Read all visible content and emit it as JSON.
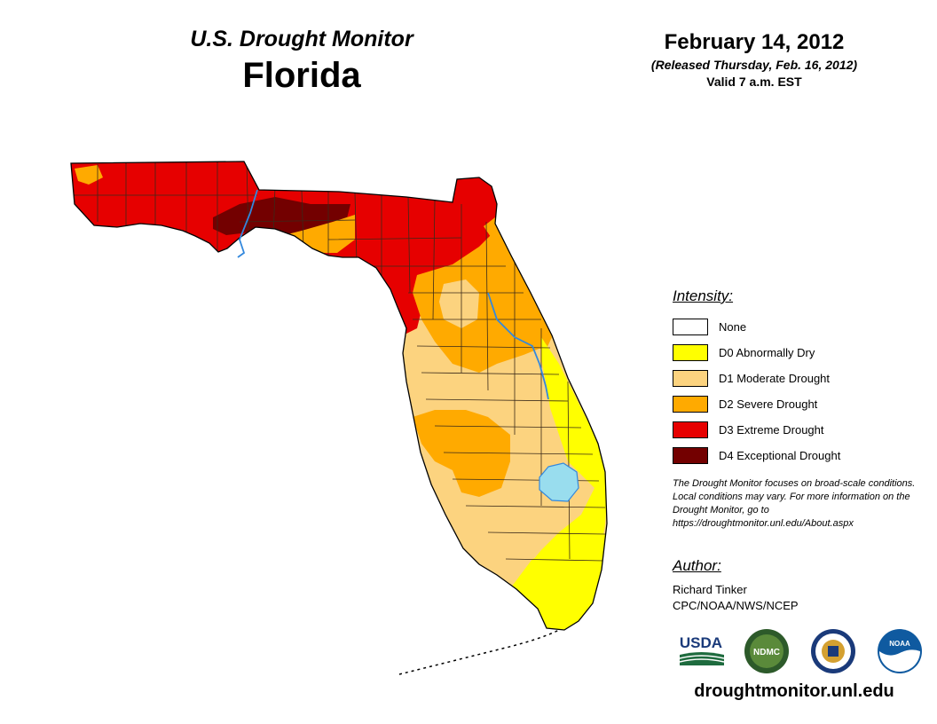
{
  "header": {
    "title": "U.S. Drought Monitor",
    "state": "Florida",
    "date": "February 14, 2012",
    "released": "(Released Thursday, Feb. 16, 2012)",
    "valid": "Valid 7 a.m. EST"
  },
  "legend": {
    "title": "Intensity:",
    "items": [
      {
        "label": "None",
        "color": "#ffffff"
      },
      {
        "label": "D0 Abnormally Dry",
        "color": "#ffff00"
      },
      {
        "label": "D1 Moderate Drought",
        "color": "#fcd37f"
      },
      {
        "label": "D2 Severe Drought",
        "color": "#ffaa00"
      },
      {
        "label": "D3 Extreme Drought",
        "color": "#e60000"
      },
      {
        "label": "D4 Exceptional Drought",
        "color": "#730000"
      }
    ]
  },
  "note": "The Drought Monitor focuses on broad-scale conditions. Local conditions may vary. For more information on the Drought Monitor, go to https://droughtmonitor.unl.edu/About.aspx",
  "author": {
    "title": "Author:",
    "name": "Richard Tinker",
    "org": "CPC/NOAA/NWS/NCEP"
  },
  "logos": {
    "usda": "USDA",
    "ndmc": "NDMC",
    "commerce": "commerce-seal",
    "noaa": "NOAA"
  },
  "website": "droughtmonitor.unl.edu",
  "map_colors": {
    "water": "#99ddee",
    "river": "#3388dd",
    "county_line": "#3a2a1a"
  }
}
